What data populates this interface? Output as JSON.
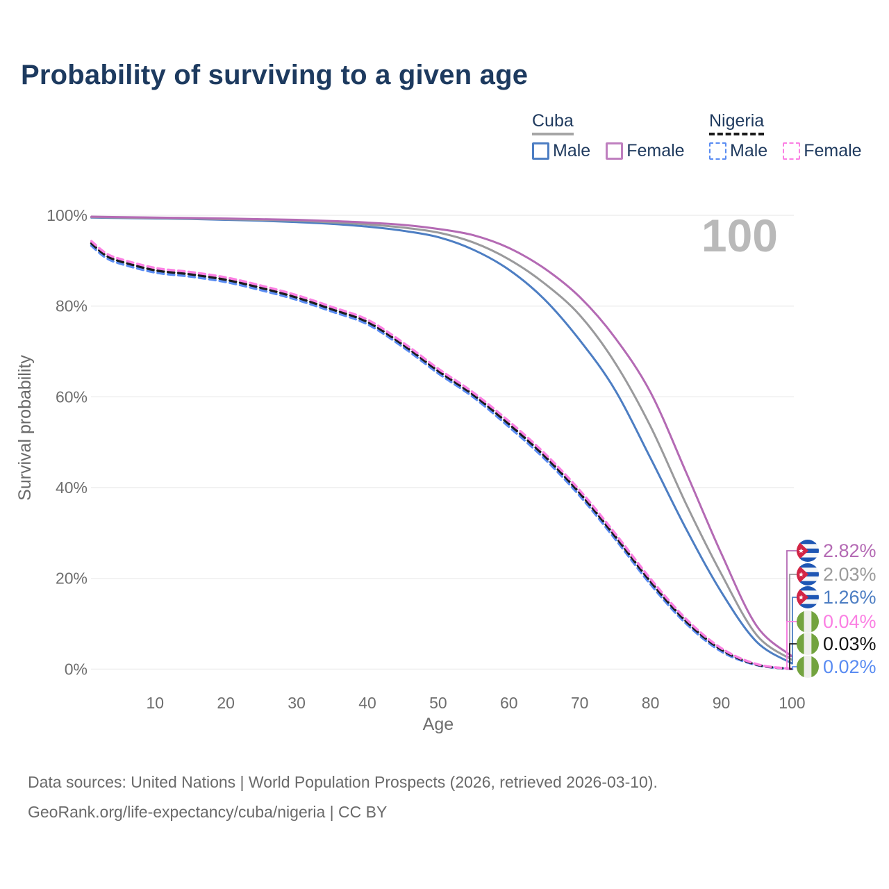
{
  "legend": {
    "groups": [
      {
        "title": "Cuba",
        "style": "solid",
        "items": [
          {
            "label": "Male",
            "color": "#4d7ec3"
          },
          {
            "label": "Female",
            "color": "#bf7fbf"
          }
        ]
      },
      {
        "title": "Nigeria",
        "style": "dashed",
        "items": [
          {
            "label": "Male",
            "color": "#5a8cf2"
          },
          {
            "label": "Female",
            "color": "#fb80e3"
          }
        ]
      }
    ]
  },
  "footer": {
    "line1": "Data sources: United Nations | World Population Prospects (2026, retrieved 2026-03-10).",
    "line2": "GeoRank.org/life-expectancy/cuba/nigeria | CC BY"
  },
  "chart_data": {
    "type": "line",
    "title": "Probability of surviving to a given age",
    "xlabel": "Age",
    "ylabel": "Survival probability",
    "xlim": [
      0,
      100
    ],
    "ylim": [
      0,
      100
    ],
    "grid": true,
    "legend_position": "top-right",
    "watermark": "100",
    "x_ticks": [
      {
        "value": 10,
        "label": "10"
      },
      {
        "value": 20,
        "label": "20"
      },
      {
        "value": 30,
        "label": "30"
      },
      {
        "value": 40,
        "label": "40"
      },
      {
        "value": 50,
        "label": "50"
      },
      {
        "value": 60,
        "label": "60"
      },
      {
        "value": 70,
        "label": "70"
      },
      {
        "value": 80,
        "label": "80"
      },
      {
        "value": 90,
        "label": "90"
      },
      {
        "value": 100,
        "label": "100"
      }
    ],
    "y_ticks": [
      {
        "value": 0,
        "label": "0%"
      },
      {
        "value": 20,
        "label": "20%"
      },
      {
        "value": 40,
        "label": "40%"
      },
      {
        "value": 60,
        "label": "60%"
      },
      {
        "value": 80,
        "label": "80%"
      },
      {
        "value": 100,
        "label": "100%"
      }
    ],
    "series": [
      {
        "key": "nigeria-male",
        "name": "Nigeria Male",
        "country": "Nigeria",
        "sex": "Male",
        "color": "#5a8cf2",
        "dash": true,
        "points": [
          [
            1,
            93.3
          ],
          [
            3,
            90.7
          ],
          [
            5,
            89.4
          ],
          [
            10,
            87.4
          ],
          [
            15,
            86.5
          ],
          [
            20,
            85.3
          ],
          [
            25,
            83.5
          ],
          [
            30,
            81.4
          ],
          [
            35,
            78.8
          ],
          [
            40,
            76.0
          ],
          [
            45,
            71.0
          ],
          [
            50,
            65.2
          ],
          [
            55,
            59.9
          ],
          [
            60,
            53.4
          ],
          [
            65,
            46.4
          ],
          [
            70,
            38.2
          ],
          [
            75,
            28.7
          ],
          [
            80,
            18.7
          ],
          [
            85,
            10.1
          ],
          [
            90,
            3.9
          ],
          [
            95,
            0.9
          ],
          [
            100,
            0.02
          ]
        ]
      },
      {
        "key": "nigeria-both",
        "name": "Nigeria (both sexes)",
        "country": "Nigeria",
        "sex": "Both",
        "color": "#1c1c1c",
        "dash": true,
        "points": [
          [
            1,
            93.8
          ],
          [
            3,
            91.2
          ],
          [
            5,
            89.9
          ],
          [
            10,
            87.9
          ],
          [
            15,
            87.0
          ],
          [
            20,
            85.8
          ],
          [
            25,
            84.0
          ],
          [
            30,
            81.9
          ],
          [
            35,
            79.3
          ],
          [
            40,
            76.5
          ],
          [
            45,
            71.5
          ],
          [
            50,
            65.7
          ],
          [
            55,
            60.4
          ],
          [
            60,
            54.0
          ],
          [
            65,
            47.0
          ],
          [
            70,
            38.8
          ],
          [
            75,
            29.3
          ],
          [
            80,
            19.3
          ],
          [
            85,
            10.6
          ],
          [
            90,
            4.3
          ],
          [
            95,
            1.0
          ],
          [
            100,
            0.03
          ]
        ]
      },
      {
        "key": "nigeria-female",
        "name": "Nigeria Female",
        "country": "Nigeria",
        "sex": "Female",
        "color": "#fb80e3",
        "dash": true,
        "points": [
          [
            1,
            94.3
          ],
          [
            3,
            91.7
          ],
          [
            5,
            90.4
          ],
          [
            10,
            88.4
          ],
          [
            15,
            87.5
          ],
          [
            20,
            86.3
          ],
          [
            25,
            84.5
          ],
          [
            30,
            82.4
          ],
          [
            35,
            79.8
          ],
          [
            40,
            77.0
          ],
          [
            45,
            72.0
          ],
          [
            50,
            66.2
          ],
          [
            55,
            60.9
          ],
          [
            60,
            54.6
          ],
          [
            65,
            47.6
          ],
          [
            70,
            39.4
          ],
          [
            75,
            29.9
          ],
          [
            80,
            19.9
          ],
          [
            85,
            11.1
          ],
          [
            90,
            4.6
          ],
          [
            95,
            1.1
          ],
          [
            100,
            0.04
          ]
        ]
      },
      {
        "key": "cuba-male",
        "name": "Cuba Male",
        "country": "Cuba",
        "sex": "Male",
        "color": "#4d7ec3",
        "dash": false,
        "points": [
          [
            1,
            99.5
          ],
          [
            5,
            99.4
          ],
          [
            10,
            99.3
          ],
          [
            15,
            99.2
          ],
          [
            20,
            99.0
          ],
          [
            25,
            98.8
          ],
          [
            30,
            98.5
          ],
          [
            35,
            98.1
          ],
          [
            40,
            97.5
          ],
          [
            45,
            96.6
          ],
          [
            50,
            95.2
          ],
          [
            55,
            92.4
          ],
          [
            60,
            88.0
          ],
          [
            65,
            81.5
          ],
          [
            70,
            72.5
          ],
          [
            75,
            61.5
          ],
          [
            80,
            46.5
          ],
          [
            85,
            31.0
          ],
          [
            90,
            17.0
          ],
          [
            95,
            6.0
          ],
          [
            100,
            1.26
          ]
        ]
      },
      {
        "key": "cuba-both",
        "name": "Cuba (both sexes)",
        "country": "Cuba",
        "sex": "Both",
        "color": "#9a9a9c",
        "dash": false,
        "points": [
          [
            1,
            99.6
          ],
          [
            5,
            99.5
          ],
          [
            10,
            99.4
          ],
          [
            15,
            99.3
          ],
          [
            20,
            99.15
          ],
          [
            25,
            99.0
          ],
          [
            30,
            98.8
          ],
          [
            35,
            98.45
          ],
          [
            40,
            98.0
          ],
          [
            45,
            97.3
          ],
          [
            50,
            96.2
          ],
          [
            55,
            94.0
          ],
          [
            60,
            90.3
          ],
          [
            65,
            85.0
          ],
          [
            70,
            78.0
          ],
          [
            75,
            67.5
          ],
          [
            80,
            53.5
          ],
          [
            85,
            36.5
          ],
          [
            90,
            21.0
          ],
          [
            95,
            7.5
          ],
          [
            100,
            2.03
          ]
        ]
      },
      {
        "key": "cuba-female",
        "name": "Cuba Female",
        "country": "Cuba",
        "sex": "Female",
        "color": "#b46ab4",
        "dash": false,
        "points": [
          [
            1,
            99.7
          ],
          [
            5,
            99.6
          ],
          [
            10,
            99.5
          ],
          [
            15,
            99.4
          ],
          [
            20,
            99.3
          ],
          [
            25,
            99.15
          ],
          [
            30,
            99.0
          ],
          [
            35,
            98.75
          ],
          [
            40,
            98.4
          ],
          [
            45,
            97.9
          ],
          [
            50,
            97.0
          ],
          [
            55,
            95.6
          ],
          [
            60,
            92.8
          ],
          [
            65,
            88.3
          ],
          [
            70,
            82.0
          ],
          [
            75,
            73.0
          ],
          [
            80,
            61.0
          ],
          [
            85,
            43.5
          ],
          [
            90,
            25.5
          ],
          [
            95,
            9.5
          ],
          [
            100,
            2.82
          ]
        ]
      }
    ],
    "end_labels": [
      {
        "series": "cuba-female",
        "flag": "cuba",
        "text": "2.82%",
        "color": "#b46ab4"
      },
      {
        "series": "cuba-both",
        "flag": "cuba",
        "text": "2.03%",
        "color": "#9c9c9c"
      },
      {
        "series": "cuba-male",
        "flag": "cuba",
        "text": "1.26%",
        "color": "#4d7ec3"
      },
      {
        "series": "nigeria-female",
        "flag": "nigeria",
        "text": "0.04%",
        "color": "#fb80e3"
      },
      {
        "series": "nigeria-both",
        "flag": "nigeria",
        "text": "0.03%",
        "color": "#141414"
      },
      {
        "series": "nigeria-male",
        "flag": "nigeria",
        "text": "0.02%",
        "color": "#5a8cf2"
      }
    ]
  }
}
